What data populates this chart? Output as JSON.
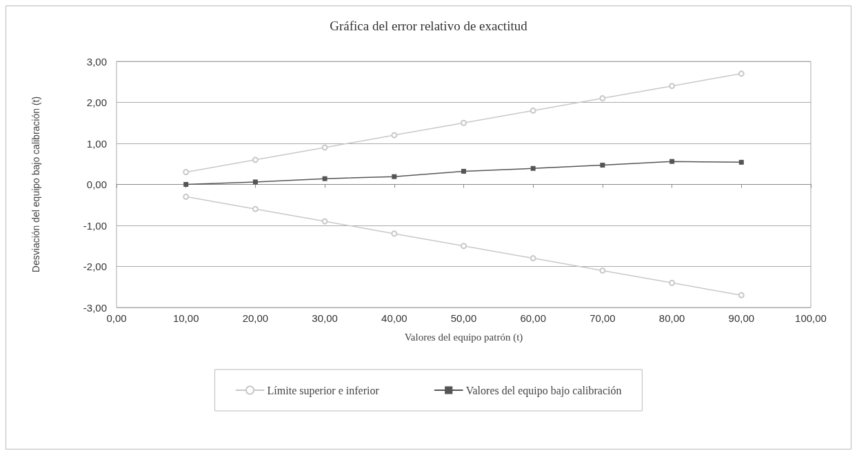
{
  "chart_data": {
    "type": "line",
    "title": "Gráfica del error relativo de exactitud",
    "xlabel": "Valores del equipo patrón (t)",
    "ylabel": "Desviación del equipo bajo calibración (t)",
    "x": [
      10,
      20,
      30,
      40,
      50,
      60,
      70,
      80,
      90
    ],
    "series": [
      {
        "name": "Límite superior e inferior",
        "color": "#c8c8c8",
        "marker": "circle",
        "values": [
          0.3,
          0.6,
          0.9,
          1.2,
          1.5,
          1.8,
          2.1,
          2.4,
          2.7
        ]
      },
      {
        "color": "#c8c8c8",
        "marker": "circle",
        "values": [
          -0.3,
          -0.6,
          -0.9,
          -1.2,
          -1.5,
          -1.8,
          -2.1,
          -2.4,
          -2.7
        ]
      },
      {
        "name": "Valores del equipo bajo calibración",
        "color": "#555555",
        "marker": "square",
        "values": [
          0,
          0.06,
          0.14,
          0.19,
          0.32,
          0.39,
          0.47,
          0.56,
          0.54
        ]
      }
    ],
    "xlim": [
      0,
      100
    ],
    "xticks": [
      {
        "value": 0,
        "label": "0,00"
      },
      {
        "value": 10,
        "label": "10,00"
      },
      {
        "value": 20,
        "label": "20,00"
      },
      {
        "value": 30,
        "label": "30,00"
      },
      {
        "value": 40,
        "label": "40,00"
      },
      {
        "value": 50,
        "label": "50,00"
      },
      {
        "value": 60,
        "label": "60,00"
      },
      {
        "value": 70,
        "label": "70,00"
      },
      {
        "value": 80,
        "label": "80,00"
      },
      {
        "value": 90,
        "label": "90,00"
      },
      {
        "value": 100,
        "label": "100,00"
      }
    ],
    "ylim": [
      -3,
      3
    ],
    "yticks": [
      {
        "value": -3,
        "label": "-3,00"
      },
      {
        "value": -2,
        "label": "-2,00"
      },
      {
        "value": -1,
        "label": "-1,00"
      },
      {
        "value": 0,
        "label": "0,00"
      },
      {
        "value": 1,
        "label": "1,00"
      },
      {
        "value": 2,
        "label": "2,00"
      },
      {
        "value": 3,
        "label": "3,00"
      }
    ],
    "grid": "y",
    "legend": "bottom",
    "line_style": "solid"
  }
}
